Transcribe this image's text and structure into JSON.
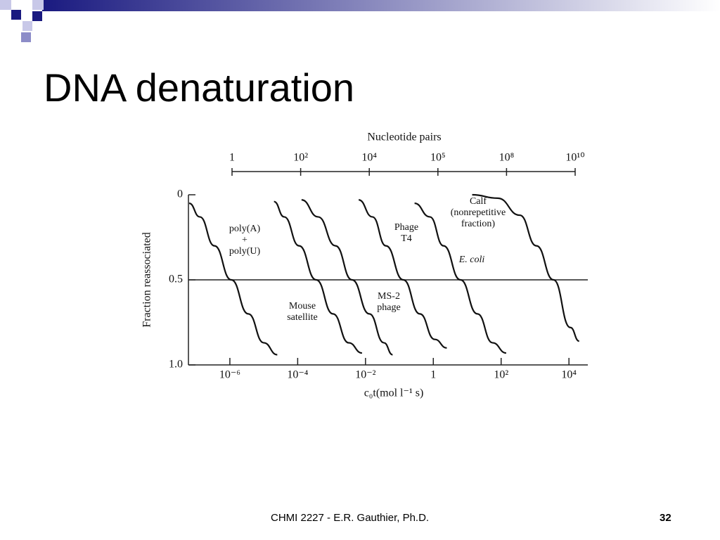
{
  "title": "DNA denaturation",
  "chart_data": {
    "type": "line",
    "x_axis_label": "c₀t(mol l⁻¹ s)",
    "y_axis_label": "Fraction reassociated",
    "x2_axis_label": "Nucleotide pairs",
    "x2_categories": [
      "1",
      "10²",
      "10⁴",
      "10⁵",
      "10⁸",
      "10¹⁰"
    ],
    "xscale": "log",
    "xlim": [
      6e-08,
      36000
    ],
    "xticks": [
      {
        "value": 1e-06,
        "label": "10⁻⁶"
      },
      {
        "value": 0.0001,
        "label": "10⁻⁴"
      },
      {
        "value": 0.01,
        "label": "10⁻²"
      },
      1,
      {
        "value": 100,
        "label": "10²"
      },
      {
        "value": 10000,
        "label": "10⁴"
      }
    ],
    "ylim": [
      0,
      1
    ],
    "y_inverted": true,
    "yticks": [
      0,
      0.5,
      {
        "value": 1,
        "label": "1.0"
      }
    ],
    "reference_line": 0.5,
    "series": [
      {
        "name": "poly(A)\n+\npoly(U)",
        "color": "#111111",
        "x": [
          6.3e-08,
          1.3e-07,
          3.5e-07,
          1.1e-06,
          3.5e-06,
          1e-05,
          2.5e-05
        ],
        "values": [
          0.05,
          0.13,
          0.3,
          0.5,
          0.7,
          0.87,
          0.94
        ]
      },
      {
        "name": "Mouse\nsatellite",
        "color": "#111111",
        "x": [
          2e-05,
          4e-05,
          0.00011,
          0.00035,
          0.0011,
          0.0032,
          0.0079
        ],
        "values": [
          0.04,
          0.13,
          0.3,
          0.5,
          0.7,
          0.87,
          0.93
        ]
      },
      {
        "name": "MS-2\nphage",
        "color": "#111111",
        "x": [
          0.00013,
          0.0004,
          0.0013,
          0.004,
          0.013,
          0.035,
          0.063
        ],
        "values": [
          0.03,
          0.13,
          0.3,
          0.5,
          0.7,
          0.87,
          0.94
        ]
      },
      {
        "name": "Phage\nT4",
        "color": "#111111",
        "x": [
          0.0063,
          0.016,
          0.04,
          0.13,
          0.4,
          1.1,
          2.5
        ],
        "values": [
          0.03,
          0.13,
          0.3,
          0.5,
          0.7,
          0.85,
          0.9
        ]
      },
      {
        "name": "E. coli",
        "color": "#111111",
        "x": [
          0.28,
          0.79,
          2,
          6.3,
          20,
          56,
          141
        ],
        "values": [
          0.05,
          0.13,
          0.3,
          0.5,
          0.7,
          0.87,
          0.93
        ]
      },
      {
        "name": "Calf\n(nonrepetitive\nfraction)",
        "color": "#111111",
        "x": [
          14,
          79,
          355,
          1100,
          3500,
          11000,
          20000
        ],
        "values": [
          0,
          0.02,
          0.12,
          0.3,
          0.5,
          0.78,
          0.86
        ]
      }
    ]
  },
  "footer": {
    "text": "CHMI 2227 - E.R. Gauthier, Ph.D.",
    "page": "32"
  }
}
